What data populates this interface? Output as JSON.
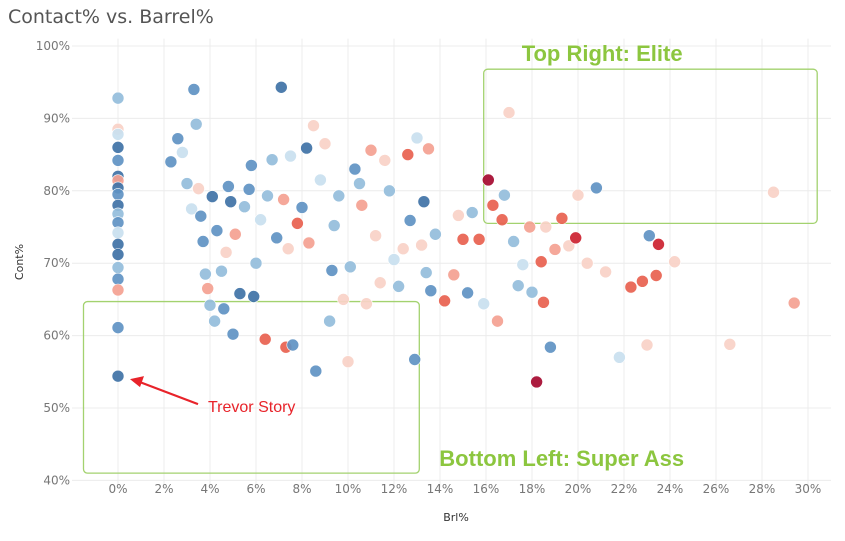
{
  "chart_data": {
    "type": "scatter",
    "title": "Contact% vs. Barrel%",
    "xlabel": "Brl%",
    "ylabel": "Cont%",
    "xlim": [
      -2,
      31
    ],
    "ylim": [
      39,
      101
    ],
    "x_ticks": [
      0,
      2,
      4,
      6,
      8,
      10,
      12,
      14,
      16,
      18,
      20,
      22,
      24,
      26,
      28,
      30
    ],
    "y_ticks": [
      40,
      50,
      60,
      70,
      80,
      90,
      100
    ],
    "x_tick_labels": [
      "0%",
      "2%",
      "4%",
      "6%",
      "8%",
      "10%",
      "12%",
      "14%",
      "16%",
      "18%",
      "20%",
      "22%",
      "24%",
      "26%",
      "28%",
      "30%"
    ],
    "y_tick_labels": [
      "40%",
      "50%",
      "60%",
      "70%",
      "80%",
      "90%",
      "100%"
    ],
    "grid": true,
    "color_legend": "diverging blue (low) to red (high)",
    "colors": {
      "b3": "#3f72a6",
      "b2": "#5f93c3",
      "b1": "#94bddb",
      "b0": "#c9dfef",
      "n": "#eef1f4",
      "r0": "#f9d1c7",
      "r1": "#f4a191",
      "r2": "#e8614f",
      "r3": "#cc2230",
      "r4": "#a5092f",
      "box": "#a3d26f",
      "arrow": "#e8232a"
    },
    "points": [
      {
        "x": 0,
        "y": 92.8,
        "c": "b1"
      },
      {
        "x": 0,
        "y": 88.5,
        "c": "r0"
      },
      {
        "x": 0,
        "y": 87.8,
        "c": "b0"
      },
      {
        "x": 0,
        "y": 86.0,
        "c": "b3"
      },
      {
        "x": 0,
        "y": 84.2,
        "c": "b2"
      },
      {
        "x": 0,
        "y": 82.0,
        "c": "b3"
      },
      {
        "x": 0,
        "y": 81.4,
        "c": "r1"
      },
      {
        "x": 0,
        "y": 80.4,
        "c": "b3"
      },
      {
        "x": 0,
        "y": 79.5,
        "c": "b2"
      },
      {
        "x": 0,
        "y": 78.0,
        "c": "b3"
      },
      {
        "x": 0,
        "y": 76.8,
        "c": "b1"
      },
      {
        "x": 0,
        "y": 75.6,
        "c": "b2"
      },
      {
        "x": 0,
        "y": 74.2,
        "c": "b0"
      },
      {
        "x": 0,
        "y": 72.6,
        "c": "b3"
      },
      {
        "x": 0,
        "y": 71.2,
        "c": "b3"
      },
      {
        "x": 0,
        "y": 69.4,
        "c": "b1"
      },
      {
        "x": 0,
        "y": 67.8,
        "c": "b2"
      },
      {
        "x": 0,
        "y": 66.3,
        "c": "r1"
      },
      {
        "x": 0,
        "y": 61.1,
        "c": "b2"
      },
      {
        "x": 0,
        "y": 54.4,
        "c": "b3"
      },
      {
        "x": 2.3,
        "y": 84.0,
        "c": "b2"
      },
      {
        "x": 2.6,
        "y": 87.2,
        "c": "b2"
      },
      {
        "x": 2.8,
        "y": 85.3,
        "c": "b0"
      },
      {
        "x": 3.0,
        "y": 81.0,
        "c": "b1"
      },
      {
        "x": 3.2,
        "y": 77.5,
        "c": "b0"
      },
      {
        "x": 3.3,
        "y": 94.0,
        "c": "b2"
      },
      {
        "x": 3.4,
        "y": 89.2,
        "c": "b1"
      },
      {
        "x": 3.5,
        "y": 80.3,
        "c": "r0"
      },
      {
        "x": 3.6,
        "y": 76.5,
        "c": "b2"
      },
      {
        "x": 3.7,
        "y": 73.0,
        "c": "b2"
      },
      {
        "x": 3.8,
        "y": 68.5,
        "c": "b1"
      },
      {
        "x": 3.9,
        "y": 66.5,
        "c": "r1"
      },
      {
        "x": 4.0,
        "y": 64.2,
        "c": "b1"
      },
      {
        "x": 4.1,
        "y": 79.2,
        "c": "b3"
      },
      {
        "x": 4.2,
        "y": 62.0,
        "c": "b1"
      },
      {
        "x": 4.3,
        "y": 74.5,
        "c": "b2"
      },
      {
        "x": 4.5,
        "y": 68.9,
        "c": "b1"
      },
      {
        "x": 4.6,
        "y": 63.7,
        "c": "b2"
      },
      {
        "x": 4.7,
        "y": 71.5,
        "c": "r0"
      },
      {
        "x": 4.8,
        "y": 80.6,
        "c": "b2"
      },
      {
        "x": 4.9,
        "y": 78.5,
        "c": "b3"
      },
      {
        "x": 5.0,
        "y": 60.2,
        "c": "b2"
      },
      {
        "x": 5.1,
        "y": 74.0,
        "c": "r1"
      },
      {
        "x": 5.3,
        "y": 65.8,
        "c": "b3"
      },
      {
        "x": 5.5,
        "y": 77.8,
        "c": "b1"
      },
      {
        "x": 5.7,
        "y": 80.2,
        "c": "b2"
      },
      {
        "x": 5.8,
        "y": 83.5,
        "c": "b2"
      },
      {
        "x": 5.9,
        "y": 65.4,
        "c": "b3"
      },
      {
        "x": 6.0,
        "y": 70.0,
        "c": "b1"
      },
      {
        "x": 6.2,
        "y": 76.0,
        "c": "b0"
      },
      {
        "x": 6.4,
        "y": 59.5,
        "c": "r2"
      },
      {
        "x": 6.5,
        "y": 79.3,
        "c": "b1"
      },
      {
        "x": 6.7,
        "y": 84.3,
        "c": "b1"
      },
      {
        "x": 6.9,
        "y": 73.5,
        "c": "b2"
      },
      {
        "x": 7.1,
        "y": 94.3,
        "c": "b3"
      },
      {
        "x": 7.2,
        "y": 78.8,
        "c": "r1"
      },
      {
        "x": 7.3,
        "y": 58.4,
        "c": "r2"
      },
      {
        "x": 7.4,
        "y": 72.0,
        "c": "r0"
      },
      {
        "x": 7.5,
        "y": 84.8,
        "c": "b0"
      },
      {
        "x": 7.6,
        "y": 58.7,
        "c": "b2"
      },
      {
        "x": 7.8,
        "y": 75.5,
        "c": "r2"
      },
      {
        "x": 8.0,
        "y": 77.7,
        "c": "b2"
      },
      {
        "x": 8.2,
        "y": 85.9,
        "c": "b3"
      },
      {
        "x": 8.3,
        "y": 72.8,
        "c": "r1"
      },
      {
        "x": 8.5,
        "y": 89.0,
        "c": "r0"
      },
      {
        "x": 8.6,
        "y": 55.1,
        "c": "b2"
      },
      {
        "x": 8.8,
        "y": 81.5,
        "c": "b0"
      },
      {
        "x": 9.0,
        "y": 86.5,
        "c": "r0"
      },
      {
        "x": 9.2,
        "y": 62.0,
        "c": "b1"
      },
      {
        "x": 9.3,
        "y": 69.0,
        "c": "b2"
      },
      {
        "x": 9.4,
        "y": 75.2,
        "c": "b1"
      },
      {
        "x": 9.6,
        "y": 79.3,
        "c": "b1"
      },
      {
        "x": 9.8,
        "y": 65.0,
        "c": "r0"
      },
      {
        "x": 10.0,
        "y": 56.4,
        "c": "r0"
      },
      {
        "x": 10.1,
        "y": 69.5,
        "c": "b1"
      },
      {
        "x": 10.3,
        "y": 83.0,
        "c": "b2"
      },
      {
        "x": 10.5,
        "y": 81.0,
        "c": "b1"
      },
      {
        "x": 10.6,
        "y": 78.0,
        "c": "r1"
      },
      {
        "x": 10.8,
        "y": 64.4,
        "c": "r0"
      },
      {
        "x": 11.0,
        "y": 85.6,
        "c": "r1"
      },
      {
        "x": 11.2,
        "y": 73.8,
        "c": "r0"
      },
      {
        "x": 11.4,
        "y": 67.3,
        "c": "r0"
      },
      {
        "x": 11.6,
        "y": 84.2,
        "c": "r0"
      },
      {
        "x": 11.8,
        "y": 80.0,
        "c": "b1"
      },
      {
        "x": 12.0,
        "y": 70.5,
        "c": "b0"
      },
      {
        "x": 12.2,
        "y": 66.8,
        "c": "b1"
      },
      {
        "x": 12.4,
        "y": 72.0,
        "c": "r0"
      },
      {
        "x": 12.6,
        "y": 85.0,
        "c": "r2"
      },
      {
        "x": 12.7,
        "y": 75.9,
        "c": "b2"
      },
      {
        "x": 12.9,
        "y": 56.7,
        "c": "b2"
      },
      {
        "x": 13.0,
        "y": 87.3,
        "c": "b0"
      },
      {
        "x": 13.2,
        "y": 72.5,
        "c": "r0"
      },
      {
        "x": 13.3,
        "y": 78.5,
        "c": "b3"
      },
      {
        "x": 13.4,
        "y": 68.7,
        "c": "b1"
      },
      {
        "x": 13.5,
        "y": 85.8,
        "c": "r1"
      },
      {
        "x": 13.6,
        "y": 66.2,
        "c": "b2"
      },
      {
        "x": 13.8,
        "y": 74.0,
        "c": "b1"
      },
      {
        "x": 14.2,
        "y": 64.8,
        "c": "r2"
      },
      {
        "x": 14.6,
        "y": 68.4,
        "c": "r1"
      },
      {
        "x": 14.8,
        "y": 76.6,
        "c": "r0"
      },
      {
        "x": 15.0,
        "y": 73.3,
        "c": "r2"
      },
      {
        "x": 15.2,
        "y": 65.9,
        "c": "b2"
      },
      {
        "x": 15.4,
        "y": 77.0,
        "c": "b1"
      },
      {
        "x": 15.7,
        "y": 73.3,
        "c": "r2"
      },
      {
        "x": 15.9,
        "y": 64.4,
        "c": "b0"
      },
      {
        "x": 16.1,
        "y": 81.5,
        "c": "r4"
      },
      {
        "x": 16.3,
        "y": 78.0,
        "c": "r2"
      },
      {
        "x": 16.5,
        "y": 62.0,
        "c": "r1"
      },
      {
        "x": 16.7,
        "y": 76.0,
        "c": "r2"
      },
      {
        "x": 16.8,
        "y": 79.4,
        "c": "b1"
      },
      {
        "x": 17.0,
        "y": 90.8,
        "c": "r0"
      },
      {
        "x": 17.2,
        "y": 73.0,
        "c": "b1"
      },
      {
        "x": 17.4,
        "y": 66.9,
        "c": "b1"
      },
      {
        "x": 17.6,
        "y": 69.8,
        "c": "b0"
      },
      {
        "x": 17.9,
        "y": 75.0,
        "c": "r1"
      },
      {
        "x": 18.0,
        "y": 66.0,
        "c": "b1"
      },
      {
        "x": 18.2,
        "y": 53.6,
        "c": "r4"
      },
      {
        "x": 18.4,
        "y": 70.2,
        "c": "r2"
      },
      {
        "x": 18.5,
        "y": 64.6,
        "c": "r2"
      },
      {
        "x": 18.6,
        "y": 75.0,
        "c": "r0"
      },
      {
        "x": 18.8,
        "y": 58.4,
        "c": "b2"
      },
      {
        "x": 19.0,
        "y": 71.9,
        "c": "r1"
      },
      {
        "x": 19.3,
        "y": 76.2,
        "c": "r2"
      },
      {
        "x": 19.6,
        "y": 72.4,
        "c": "r0"
      },
      {
        "x": 19.9,
        "y": 73.5,
        "c": "r3"
      },
      {
        "x": 20.0,
        "y": 79.4,
        "c": "r0"
      },
      {
        "x": 20.4,
        "y": 70.0,
        "c": "r0"
      },
      {
        "x": 20.8,
        "y": 80.4,
        "c": "b2"
      },
      {
        "x": 21.2,
        "y": 68.8,
        "c": "r0"
      },
      {
        "x": 21.8,
        "y": 57.0,
        "c": "b0"
      },
      {
        "x": 22.3,
        "y": 66.7,
        "c": "r2"
      },
      {
        "x": 22.8,
        "y": 67.5,
        "c": "r2"
      },
      {
        "x": 23.0,
        "y": 58.7,
        "c": "r0"
      },
      {
        "x": 23.1,
        "y": 73.8,
        "c": "b2"
      },
      {
        "x": 23.4,
        "y": 68.3,
        "c": "r2"
      },
      {
        "x": 23.5,
        "y": 72.6,
        "c": "r3"
      },
      {
        "x": 24.2,
        "y": 70.2,
        "c": "r0"
      },
      {
        "x": 26.6,
        "y": 58.8,
        "c": "r0"
      },
      {
        "x": 28.5,
        "y": 79.8,
        "c": "r0"
      },
      {
        "x": 29.4,
        "y": 64.5,
        "c": "r1"
      }
    ],
    "annotations": {
      "top_right": {
        "label": "Top Right: Elite",
        "x_range": [
          15.9,
          30.4
        ],
        "y_range": [
          75.5,
          96.8
        ]
      },
      "bottom_left": {
        "label": "Bottom Left: Super Ass",
        "x_range": [
          -1.5,
          13.1
        ],
        "y_range": [
          41.0,
          64.7
        ]
      },
      "player": {
        "label": "Trevor Story",
        "x": 0,
        "y": 54.4
      }
    }
  }
}
